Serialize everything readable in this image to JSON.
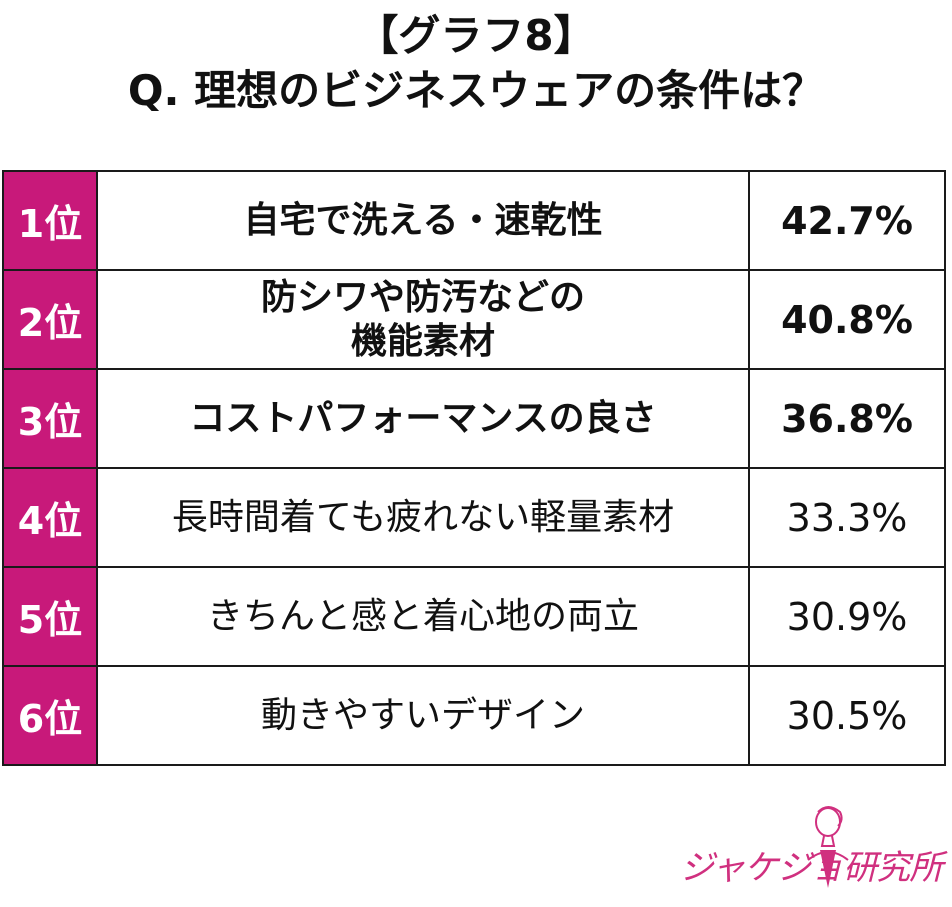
{
  "title": {
    "line1": "【グラフ8】",
    "line2": "Q. 理想のビジネスウェアの条件は？"
  },
  "colors": {
    "rank_bg": "#c8197a",
    "border": "#1a1a1a",
    "logo": "#d0307f"
  },
  "chart_data": {
    "type": "table",
    "rows": [
      {
        "rank": "1位",
        "label_lines": [
          "自宅で洗える・速乾性"
        ],
        "value": "42.7%",
        "percent": 42.7,
        "bold": true
      },
      {
        "rank": "2位",
        "label_lines": [
          "防シワや防汚などの",
          "機能素材"
        ],
        "value": "40.8%",
        "percent": 40.8,
        "bold": true
      },
      {
        "rank": "3位",
        "label_lines": [
          "コストパフォーマンスの良さ"
        ],
        "value": "36.8%",
        "percent": 36.8,
        "bold": true
      },
      {
        "rank": "4位",
        "label_lines": [
          "長時間着ても疲れない軽量素材"
        ],
        "value": "33.3%",
        "percent": 33.3,
        "bold": false
      },
      {
        "rank": "5位",
        "label_lines": [
          "きちんと感と着心地の両立"
        ],
        "value": "30.9%",
        "percent": 30.9,
        "bold": false
      },
      {
        "rank": "6位",
        "label_lines": [
          "動きやすいデザイン"
        ],
        "value": "30.5%",
        "percent": 30.5,
        "bold": false
      }
    ]
  },
  "logo": {
    "text": "ジャケジョ研究所"
  }
}
